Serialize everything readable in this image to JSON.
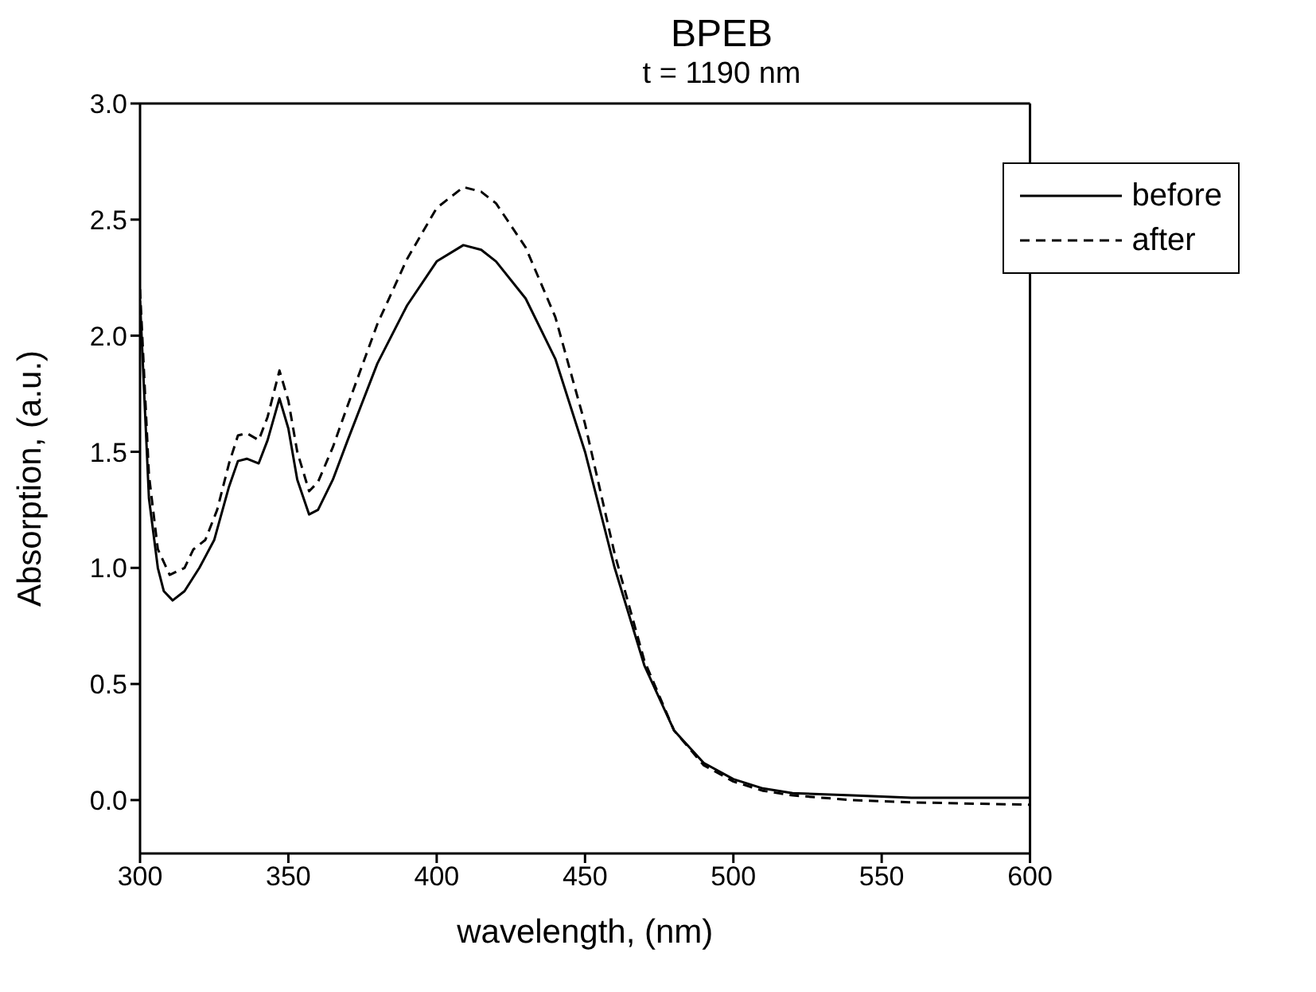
{
  "chart_data": {
    "type": "line",
    "title": "BPEB",
    "subtitle": "t = 1190 nm",
    "xlabel": "wavelength, (nm)",
    "ylabel": "Absorption, (a.u.)",
    "xlim": [
      300,
      600
    ],
    "xticks": [
      300,
      350,
      400,
      450,
      500,
      550,
      600
    ],
    "ylim": [
      -0.23,
      3.0
    ],
    "yticks": [
      {
        "value": 0,
        "label": "0.0"
      },
      0.5,
      {
        "value": 1,
        "label": "1.0"
      },
      1.5,
      {
        "value": 2,
        "label": "2.0"
      },
      2.5,
      {
        "value": 3,
        "label": "3.0"
      }
    ],
    "legend": "top right",
    "marker": "none",
    "series": [
      {
        "name": "before",
        "color": "#000000",
        "line_style": "solid",
        "x": [
          300,
          303,
          306,
          308,
          311,
          315,
          320,
          325,
          330,
          333,
          336,
          340,
          343,
          347,
          350,
          353,
          357,
          360,
          365,
          370,
          380,
          390,
          400,
          409,
          415,
          420,
          430,
          440,
          450,
          460,
          470,
          480,
          490,
          500,
          510,
          520,
          540,
          560,
          600
        ],
        "values": [
          2.15,
          1.3,
          1.0,
          0.9,
          0.86,
          0.9,
          1.0,
          1.12,
          1.35,
          1.46,
          1.47,
          1.45,
          1.55,
          1.73,
          1.6,
          1.38,
          1.23,
          1.25,
          1.38,
          1.55,
          1.88,
          2.13,
          2.32,
          2.39,
          2.37,
          2.32,
          2.16,
          1.9,
          1.5,
          1.0,
          0.58,
          0.3,
          0.16,
          0.09,
          0.05,
          0.03,
          0.02,
          0.01,
          0.01
        ]
      },
      {
        "name": "after",
        "color": "#000000",
        "line_style": "dashed",
        "x": [
          300,
          303,
          306,
          310,
          315,
          318,
          322,
          326,
          330,
          333,
          336,
          340,
          343,
          347,
          350,
          353,
          357,
          360,
          365,
          370,
          380,
          390,
          400,
          409,
          415,
          420,
          430,
          440,
          450,
          460,
          470,
          480,
          490,
          500,
          510,
          520,
          540,
          560,
          600
        ],
        "values": [
          2.2,
          1.4,
          1.08,
          0.97,
          1.0,
          1.08,
          1.12,
          1.25,
          1.45,
          1.57,
          1.58,
          1.55,
          1.65,
          1.85,
          1.72,
          1.5,
          1.33,
          1.37,
          1.52,
          1.7,
          2.05,
          2.33,
          2.55,
          2.64,
          2.62,
          2.57,
          2.38,
          2.08,
          1.62,
          1.06,
          0.6,
          0.3,
          0.15,
          0.08,
          0.04,
          0.02,
          0.0,
          -0.01,
          -0.02
        ]
      }
    ]
  }
}
